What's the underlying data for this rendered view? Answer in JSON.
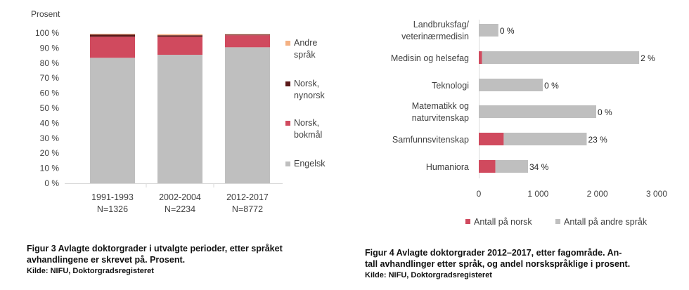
{
  "chart_data": [
    {
      "type": "bar",
      "stacked": true,
      "ylabel": "Prosent",
      "ylim": [
        0,
        100
      ],
      "yticks": [
        "0 %",
        "10 %",
        "20 %",
        "30 %",
        "40 %",
        "50 %",
        "60 %",
        "70 %",
        "80 %",
        "90 %",
        "100 %"
      ],
      "categories": [
        {
          "line1": "1991-1993",
          "line2": "N=1326"
        },
        {
          "line1": "2002-2004",
          "line2": "N=2234"
        },
        {
          "line1": "2012-2017",
          "line2": "N=8772"
        }
      ],
      "legend_position": "right",
      "series": [
        {
          "name": "Engelsk",
          "color": "#bfbfbf",
          "values": [
            83.5,
            85.5,
            90.5
          ]
        },
        {
          "name": "Norsk, bokmål",
          "color": "#d04a5e",
          "values": [
            14.0,
            12.0,
            8.0
          ]
        },
        {
          "name": "Norsk, nynorsk",
          "color": "#5a1a1a",
          "values": [
            1.5,
            1.0,
            0.5
          ]
        },
        {
          "name": "Andre språk",
          "color": "#f4b183",
          "values": [
            0.5,
            0.7,
            0.3
          ]
        }
      ],
      "legend": [
        {
          "line1": "Andre",
          "line2": "språk",
          "color": "#f4b183"
        },
        {
          "line1": "Norsk,",
          "line2": "nynorsk",
          "color": "#5a1a1a"
        },
        {
          "line1": "Norsk,",
          "line2": "bokmål",
          "color": "#d04a5e"
        },
        {
          "line1": "Engelsk",
          "line2": "",
          "color": "#bfbfbf"
        }
      ]
    },
    {
      "type": "bar",
      "orientation": "horizontal",
      "stacked": true,
      "xlim": [
        0,
        3000
      ],
      "xticks": [
        "0",
        "1 000",
        "2 000",
        "3 000"
      ],
      "xtick_values": [
        0,
        1000,
        2000,
        3000
      ],
      "categories": [
        {
          "line1": "Landbruksfag/",
          "line2": "veterinærmedisin"
        },
        {
          "line1": "Medisin og helsefag",
          "line2": ""
        },
        {
          "line1": "Teknologi",
          "line2": ""
        },
        {
          "line1": "Matematikk og",
          "line2": "naturvitenskap"
        },
        {
          "line1": "Samfunnsvitenskap",
          "line2": ""
        },
        {
          "line1": "Humaniora",
          "line2": ""
        }
      ],
      "series": [
        {
          "name": "Antall på norsk",
          "color": "#d04a5e",
          "values": [
            0,
            55,
            0,
            0,
            420,
            280
          ]
        },
        {
          "name": "Antall på andre språk",
          "color": "#bfbfbf",
          "values": [
            330,
            2650,
            1080,
            1980,
            1400,
            550
          ]
        }
      ],
      "data_labels": [
        "0 %",
        "2 %",
        "0 %",
        "0 %",
        "23 %",
        "34 %"
      ],
      "legend_position": "bottom"
    }
  ],
  "captions": {
    "left_title_1": "Figur 3 Avlagte doktorgrader i utvalgte perioder, etter språket",
    "left_title_2": "avhandlingene er skrevet på. Prosent.",
    "left_source": "Kilde: NIFU, Doktorgradsregisteret",
    "right_title_1": "Figur 4 Avlagte doktorgrader 2012–2017, etter fagområde. An-",
    "right_title_2": "tall avhandlinger etter språk, og andel norskspråklige i prosent.",
    "right_source": "Kilde: NIFU, Doktorgradsregisteret"
  }
}
